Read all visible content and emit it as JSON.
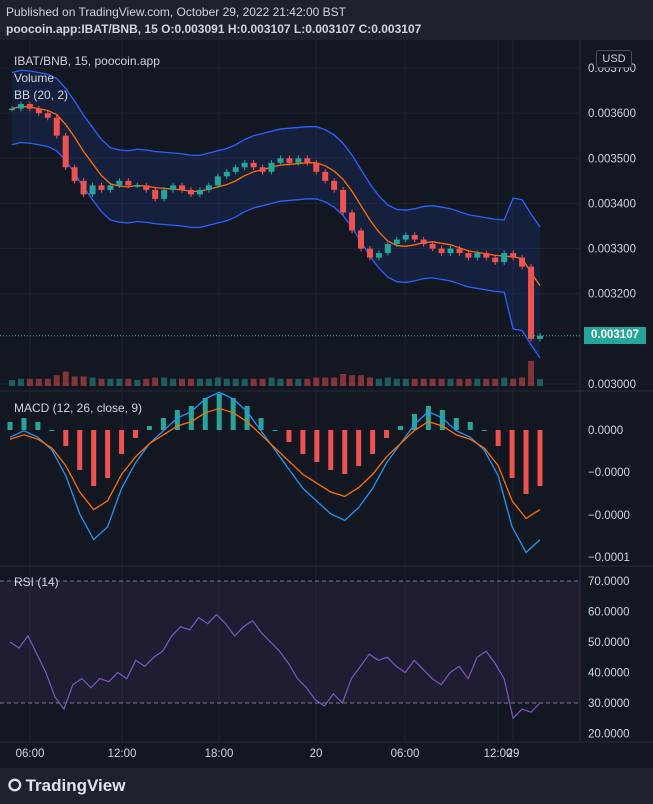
{
  "header": {
    "published": "Published on TradingView.com, October 29, 2022 21:42:00 BST",
    "ohlc": "poocoin.app:IBAT/BNB, 15  O:0.003091  H:0.003107  L:0.003107  C:0.003107"
  },
  "legend": {
    "symbol": "IBAT/BNB, 15, poocoin.app",
    "volume": "Volume",
    "bb": "BB (20, 2)",
    "macd": "MACD (12, 26, close, 9)",
    "rsi": "RSI (14)"
  },
  "currency": "USD",
  "last_price": "0.003107",
  "footer": {
    "brand": "TradingView"
  },
  "colors": {
    "background": "#131722",
    "up": "#26a69a",
    "down": "#ef5350",
    "bb_band": "#2962ff",
    "basis": "#ff6d00",
    "rsi": "#7e57c2",
    "macd_line": "#2196f3",
    "signal_line": "#ff6d00"
  },
  "chart_data": {
    "type": "candlestick",
    "x_ticks": [
      "06:00",
      "12:00",
      "18:00",
      "20",
      "06:00",
      "12:00",
      "29"
    ],
    "price_ticks": [
      "0.003700",
      "0.003600",
      "0.003500",
      "0.003400",
      "0.003300",
      "0.003200",
      "0.003000"
    ],
    "price_ylim": [
      0.003,
      0.0037
    ],
    "macd_ticks": [
      "0.0000",
      "−0.0000",
      "−0.0000",
      "−0.0001"
    ],
    "rsi_ticks": [
      "70.0000",
      "60.0000",
      "50.0000",
      "40.0000",
      "30.0000",
      "20.0000"
    ],
    "rsi_bands": [
      30,
      70
    ],
    "close_series": [
      0.00361,
      0.00362,
      0.00361,
      0.0036,
      0.00359,
      0.00355,
      0.00348,
      0.00345,
      0.00342,
      0.00344,
      0.00343,
      0.00344,
      0.00345,
      0.00344,
      0.00344,
      0.00343,
      0.00341,
      0.00343,
      0.00344,
      0.00343,
      0.00342,
      0.00343,
      0.00344,
      0.00346,
      0.00347,
      0.00348,
      0.00349,
      0.00348,
      0.00347,
      0.00349,
      0.0035,
      0.00349,
      0.0035,
      0.00349,
      0.00347,
      0.00345,
      0.00343,
      0.00338,
      0.00334,
      0.0033,
      0.00328,
      0.00329,
      0.00331,
      0.00332,
      0.00333,
      0.00332,
      0.00331,
      0.0033,
      0.00329,
      0.0033,
      0.00329,
      0.00328,
      0.00329,
      0.00328,
      0.00327,
      0.00329,
      0.00328,
      0.00326,
      0.0031,
      0.003107
    ],
    "rsi_series": [
      50,
      48,
      52,
      46,
      40,
      32,
      28,
      36,
      38,
      35,
      38,
      37,
      40,
      38,
      44,
      42,
      45,
      47,
      52,
      55,
      54,
      58,
      56,
      59,
      56,
      52,
      55,
      57,
      53,
      50,
      47,
      43,
      38,
      35,
      31,
      29,
      33,
      30,
      38,
      42,
      46,
      44,
      45,
      42,
      40,
      44,
      41,
      38,
      36,
      40,
      42,
      38,
      45,
      47,
      43,
      38,
      25,
      28,
      27,
      30
    ],
    "macd_hist": [
      0.2,
      0.3,
      0.2,
      0.0,
      -0.4,
      -1.0,
      -1.4,
      -1.2,
      -0.6,
      -0.2,
      0.1,
      0.3,
      0.5,
      0.6,
      0.8,
      0.9,
      0.8,
      0.6,
      0.3,
      0.0,
      -0.3,
      -0.6,
      -0.8,
      -1.0,
      -1.1,
      -0.9,
      -0.6,
      -0.2,
      0.1,
      0.4,
      0.6,
      0.5,
      0.3,
      0.2,
      0.0,
      -0.4,
      -1.2,
      -1.6,
      -1.4
    ]
  }
}
